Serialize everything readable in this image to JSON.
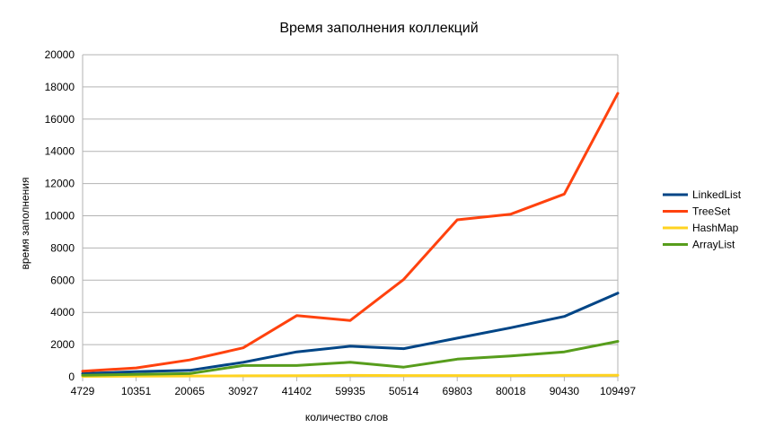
{
  "chart_data": {
    "type": "line",
    "title": "Время заполнения коллекций",
    "xlabel": "количество слов",
    "ylabel": "время заполнения",
    "categories": [
      "4729",
      "10351",
      "20065",
      "30927",
      "41402",
      "59935",
      "50514",
      "69803",
      "80018",
      "90430",
      "109497"
    ],
    "ylim": [
      0,
      20000
    ],
    "yticks": [
      0,
      2000,
      4000,
      6000,
      8000,
      10000,
      12000,
      14000,
      16000,
      18000,
      20000
    ],
    "grid": "horizontal",
    "legend_position": "right",
    "series": [
      {
        "name": "LinkedList",
        "color": "#004586",
        "values": [
          200,
          320,
          400,
          900,
          1550,
          1900,
          1750,
          2400,
          3050,
          3750,
          5200
        ]
      },
      {
        "name": "TreeSet",
        "color": "#ff420e",
        "values": [
          350,
          550,
          1050,
          1800,
          3800,
          3500,
          6050,
          9750,
          10100,
          11350,
          17600
        ]
      },
      {
        "name": "HashMap",
        "color": "#ffd320",
        "values": [
          30,
          40,
          50,
          60,
          70,
          90,
          80,
          80,
          80,
          90,
          100
        ]
      },
      {
        "name": "ArrayList",
        "color": "#579d1c",
        "values": [
          100,
          150,
          200,
          700,
          700,
          900,
          600,
          1100,
          1300,
          1550,
          2200
        ]
      }
    ]
  }
}
